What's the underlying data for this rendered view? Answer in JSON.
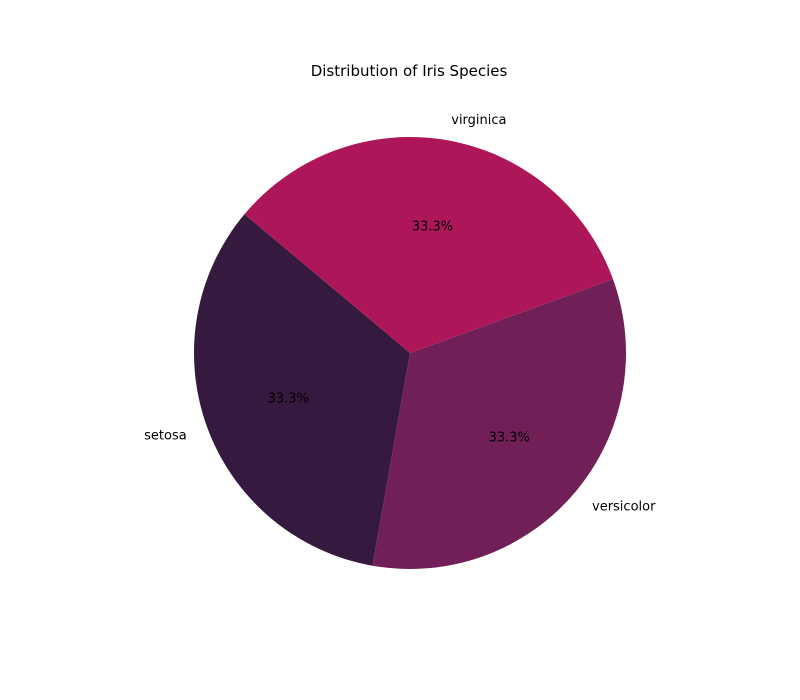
{
  "chart_data": {
    "type": "pie",
    "title": "Distribution of Iris Species",
    "categories": [
      "setosa",
      "versicolor",
      "virginica"
    ],
    "values": [
      50,
      50,
      50
    ],
    "percent_labels": [
      "33.3%",
      "33.3%",
      "33.3%"
    ],
    "colors": [
      "#35193e",
      "#701f57",
      "#ad1759"
    ],
    "start_angle_deg": 140,
    "direction": "counterclockwise",
    "legend": "none"
  }
}
